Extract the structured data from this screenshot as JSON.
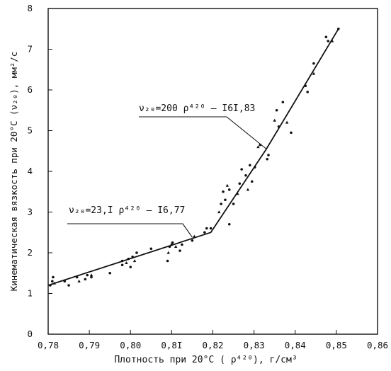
{
  "chart_data": {
    "type": "scatter",
    "title": "",
    "xlabel": "Плотность при 20°С ( ρ⁴²⁰), г/см³",
    "ylabel": "Кинематическая вязкость при 20°С (ν₂₀), мм²/с",
    "xlim": [
      0.78,
      0.86
    ],
    "ylim": [
      0,
      8
    ],
    "grid": false,
    "x_ticks": [
      "0,78",
      "0,79",
      "0,80",
      "0,8I",
      "0,82",
      "0,83",
      "0,84",
      "0,85",
      "0,86"
    ],
    "y_ticks": [
      "0",
      "1",
      "2",
      "3",
      "4",
      "5",
      "6",
      "7",
      "8"
    ],
    "annotations": [
      {
        "text": "ν₂₀=23,I ρ⁴²⁰ – I6,77",
        "points_to": {
          "x": 0.815,
          "y": 2.38
        }
      },
      {
        "text": "ν₂₀=200 ρ⁴²⁰ – I6I,83",
        "points_to": {
          "x": 0.833,
          "y": 4.55
        }
      }
    ],
    "series": [
      {
        "type": "line",
        "values": [
          {
            "x": 0.78,
            "y": 1.2
          },
          {
            "x": 0.8195,
            "y": 2.5
          },
          {
            "x": 0.833,
            "y": 4.55
          },
          {
            "x": 0.8505,
            "y": 7.5
          }
        ]
      },
      {
        "type": "scatter",
        "values": [
          {
            "x": 0.7805,
            "y": 1.2
          },
          {
            "x": 0.781,
            "y": 1.3
          },
          {
            "x": 0.7812,
            "y": 1.4
          },
          {
            "x": 0.7815,
            "y": 1.25
          },
          {
            "x": 0.784,
            "y": 1.3
          },
          {
            "x": 0.785,
            "y": 1.2
          },
          {
            "x": 0.787,
            "y": 1.4
          },
          {
            "x": 0.7875,
            "y": 1.3
          },
          {
            "x": 0.789,
            "y": 1.35
          },
          {
            "x": 0.7895,
            "y": 1.45
          },
          {
            "x": 0.7905,
            "y": 1.4
          },
          {
            "x": 0.7905,
            "y": 1.45
          },
          {
            "x": 0.795,
            "y": 1.5
          },
          {
            "x": 0.798,
            "y": 1.7
          },
          {
            "x": 0.798,
            "y": 1.8
          },
          {
            "x": 0.799,
            "y": 1.75
          },
          {
            "x": 0.7995,
            "y": 1.85
          },
          {
            "x": 0.8,
            "y": 1.65
          },
          {
            "x": 0.8005,
            "y": 1.9
          },
          {
            "x": 0.801,
            "y": 1.8
          },
          {
            "x": 0.8015,
            "y": 2.0
          },
          {
            "x": 0.805,
            "y": 2.1
          },
          {
            "x": 0.809,
            "y": 1.8
          },
          {
            "x": 0.8092,
            "y": 2.0
          },
          {
            "x": 0.8095,
            "y": 2.15
          },
          {
            "x": 0.81,
            "y": 2.2
          },
          {
            "x": 0.8102,
            "y": 2.25
          },
          {
            "x": 0.811,
            "y": 2.15
          },
          {
            "x": 0.812,
            "y": 2.05
          },
          {
            "x": 0.8125,
            "y": 2.2
          },
          {
            "x": 0.815,
            "y": 2.3
          },
          {
            "x": 0.8155,
            "y": 2.4
          },
          {
            "x": 0.818,
            "y": 2.5
          },
          {
            "x": 0.8185,
            "y": 2.6
          },
          {
            "x": 0.8195,
            "y": 2.6
          },
          {
            "x": 0.8215,
            "y": 3.0
          },
          {
            "x": 0.822,
            "y": 3.2
          },
          {
            "x": 0.8225,
            "y": 3.5
          },
          {
            "x": 0.823,
            "y": 3.3
          },
          {
            "x": 0.8235,
            "y": 3.65
          },
          {
            "x": 0.824,
            "y": 3.55
          },
          {
            "x": 0.824,
            "y": 2.7
          },
          {
            "x": 0.825,
            "y": 3.2
          },
          {
            "x": 0.826,
            "y": 3.45
          },
          {
            "x": 0.8265,
            "y": 3.7
          },
          {
            "x": 0.827,
            "y": 4.05
          },
          {
            "x": 0.828,
            "y": 3.9
          },
          {
            "x": 0.8285,
            "y": 3.55
          },
          {
            "x": 0.829,
            "y": 4.15
          },
          {
            "x": 0.8295,
            "y": 3.75
          },
          {
            "x": 0.8302,
            "y": 4.1
          },
          {
            "x": 0.831,
            "y": 4.6
          },
          {
            "x": 0.8315,
            "y": 4.65
          },
          {
            "x": 0.8332,
            "y": 4.3
          },
          {
            "x": 0.8335,
            "y": 4.4
          },
          {
            "x": 0.835,
            "y": 5.25
          },
          {
            "x": 0.8355,
            "y": 5.5
          },
          {
            "x": 0.836,
            "y": 5.1
          },
          {
            "x": 0.837,
            "y": 5.7
          },
          {
            "x": 0.838,
            "y": 5.2
          },
          {
            "x": 0.839,
            "y": 4.95
          },
          {
            "x": 0.8425,
            "y": 6.1
          },
          {
            "x": 0.843,
            "y": 5.95
          },
          {
            "x": 0.8445,
            "y": 6.4
          },
          {
            "x": 0.8445,
            "y": 6.65
          },
          {
            "x": 0.8475,
            "y": 7.3
          },
          {
            "x": 0.848,
            "y": 7.2
          },
          {
            "x": 0.849,
            "y": 7.2
          },
          {
            "x": 0.8505,
            "y": 7.5
          }
        ]
      }
    ]
  }
}
